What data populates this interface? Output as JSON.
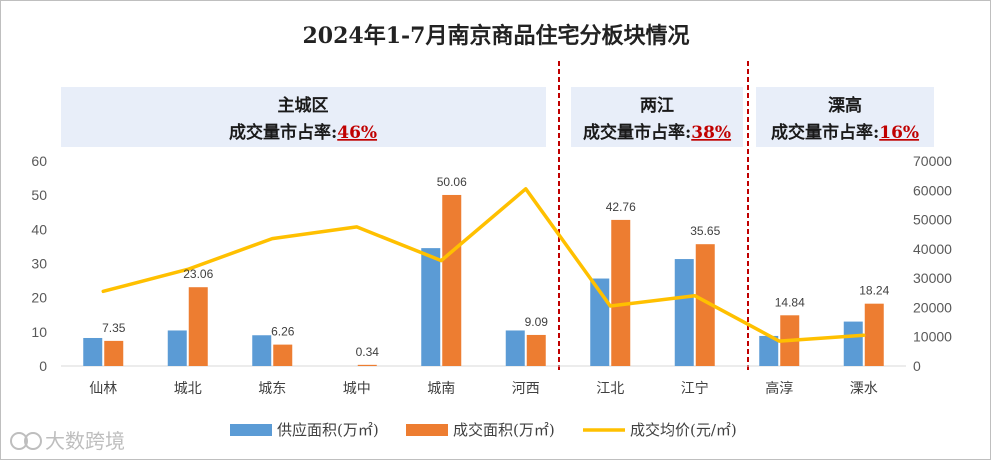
{
  "chart_data": {
    "type": "bar",
    "title": "2024年1-7月南京商品住宅分板块情况",
    "categories": [
      "仙林",
      "城北",
      "城东",
      "城中",
      "城南",
      "河西",
      "江北",
      "江宁",
      "高淳",
      "溧水"
    ],
    "series": [
      {
        "name": "供应面积(万㎡)",
        "type": "bar",
        "axis": "left",
        "color": "#5b9bd5",
        "values": [
          8.2,
          10.4,
          9.0,
          0,
          34.5,
          10.4,
          25.6,
          31.3,
          8.8,
          13.0
        ]
      },
      {
        "name": "成交面积(万㎡)",
        "type": "bar",
        "axis": "left",
        "color": "#ed7d31",
        "values": [
          7.35,
          23.06,
          6.26,
          0.34,
          50.06,
          9.09,
          42.76,
          35.65,
          14.84,
          18.24
        ]
      },
      {
        "name": "成交均价(元/㎡)",
        "type": "line",
        "axis": "right",
        "color": "#ffc000",
        "values": [
          25500,
          33000,
          43500,
          47500,
          36000,
          60500,
          20500,
          24000,
          8500,
          10500
        ]
      }
    ],
    "data_labels": [
      "7.35",
      "23.06",
      "6.26",
      "0.34",
      "50.06",
      "9.09",
      "42.76",
      "35.65",
      "14.84",
      "18.24"
    ],
    "ylim_left": [
      0,
      60
    ],
    "yticks_left": [
      "0",
      "10",
      "20",
      "30",
      "40",
      "50",
      "60"
    ],
    "ylim_right": [
      0,
      70000
    ],
    "yticks_right": [
      "0",
      "10000",
      "20000",
      "30000",
      "40000",
      "50000",
      "60000",
      "70000"
    ],
    "legend_position": "bottom",
    "regions": [
      {
        "name": "主城区",
        "share_label": "成交量市占率:",
        "share_value": "46%",
        "categories": [
          "仙林",
          "城北",
          "城东",
          "城中",
          "城南",
          "河西"
        ]
      },
      {
        "name": "两江",
        "share_label": "成交量市占率:",
        "share_value": "38%",
        "categories": [
          "江北",
          "江宁"
        ]
      },
      {
        "name": "溧高",
        "share_label": "成交量市占率:",
        "share_value": "16%",
        "categories": [
          "高淳",
          "溧水"
        ]
      }
    ]
  },
  "watermark": "大数跨境",
  "colors": {
    "supply": "#5b9bd5",
    "deal": "#ed7d31",
    "price": "#ffc000",
    "region_bg": "#e8eef9",
    "divider": "#c00000"
  }
}
